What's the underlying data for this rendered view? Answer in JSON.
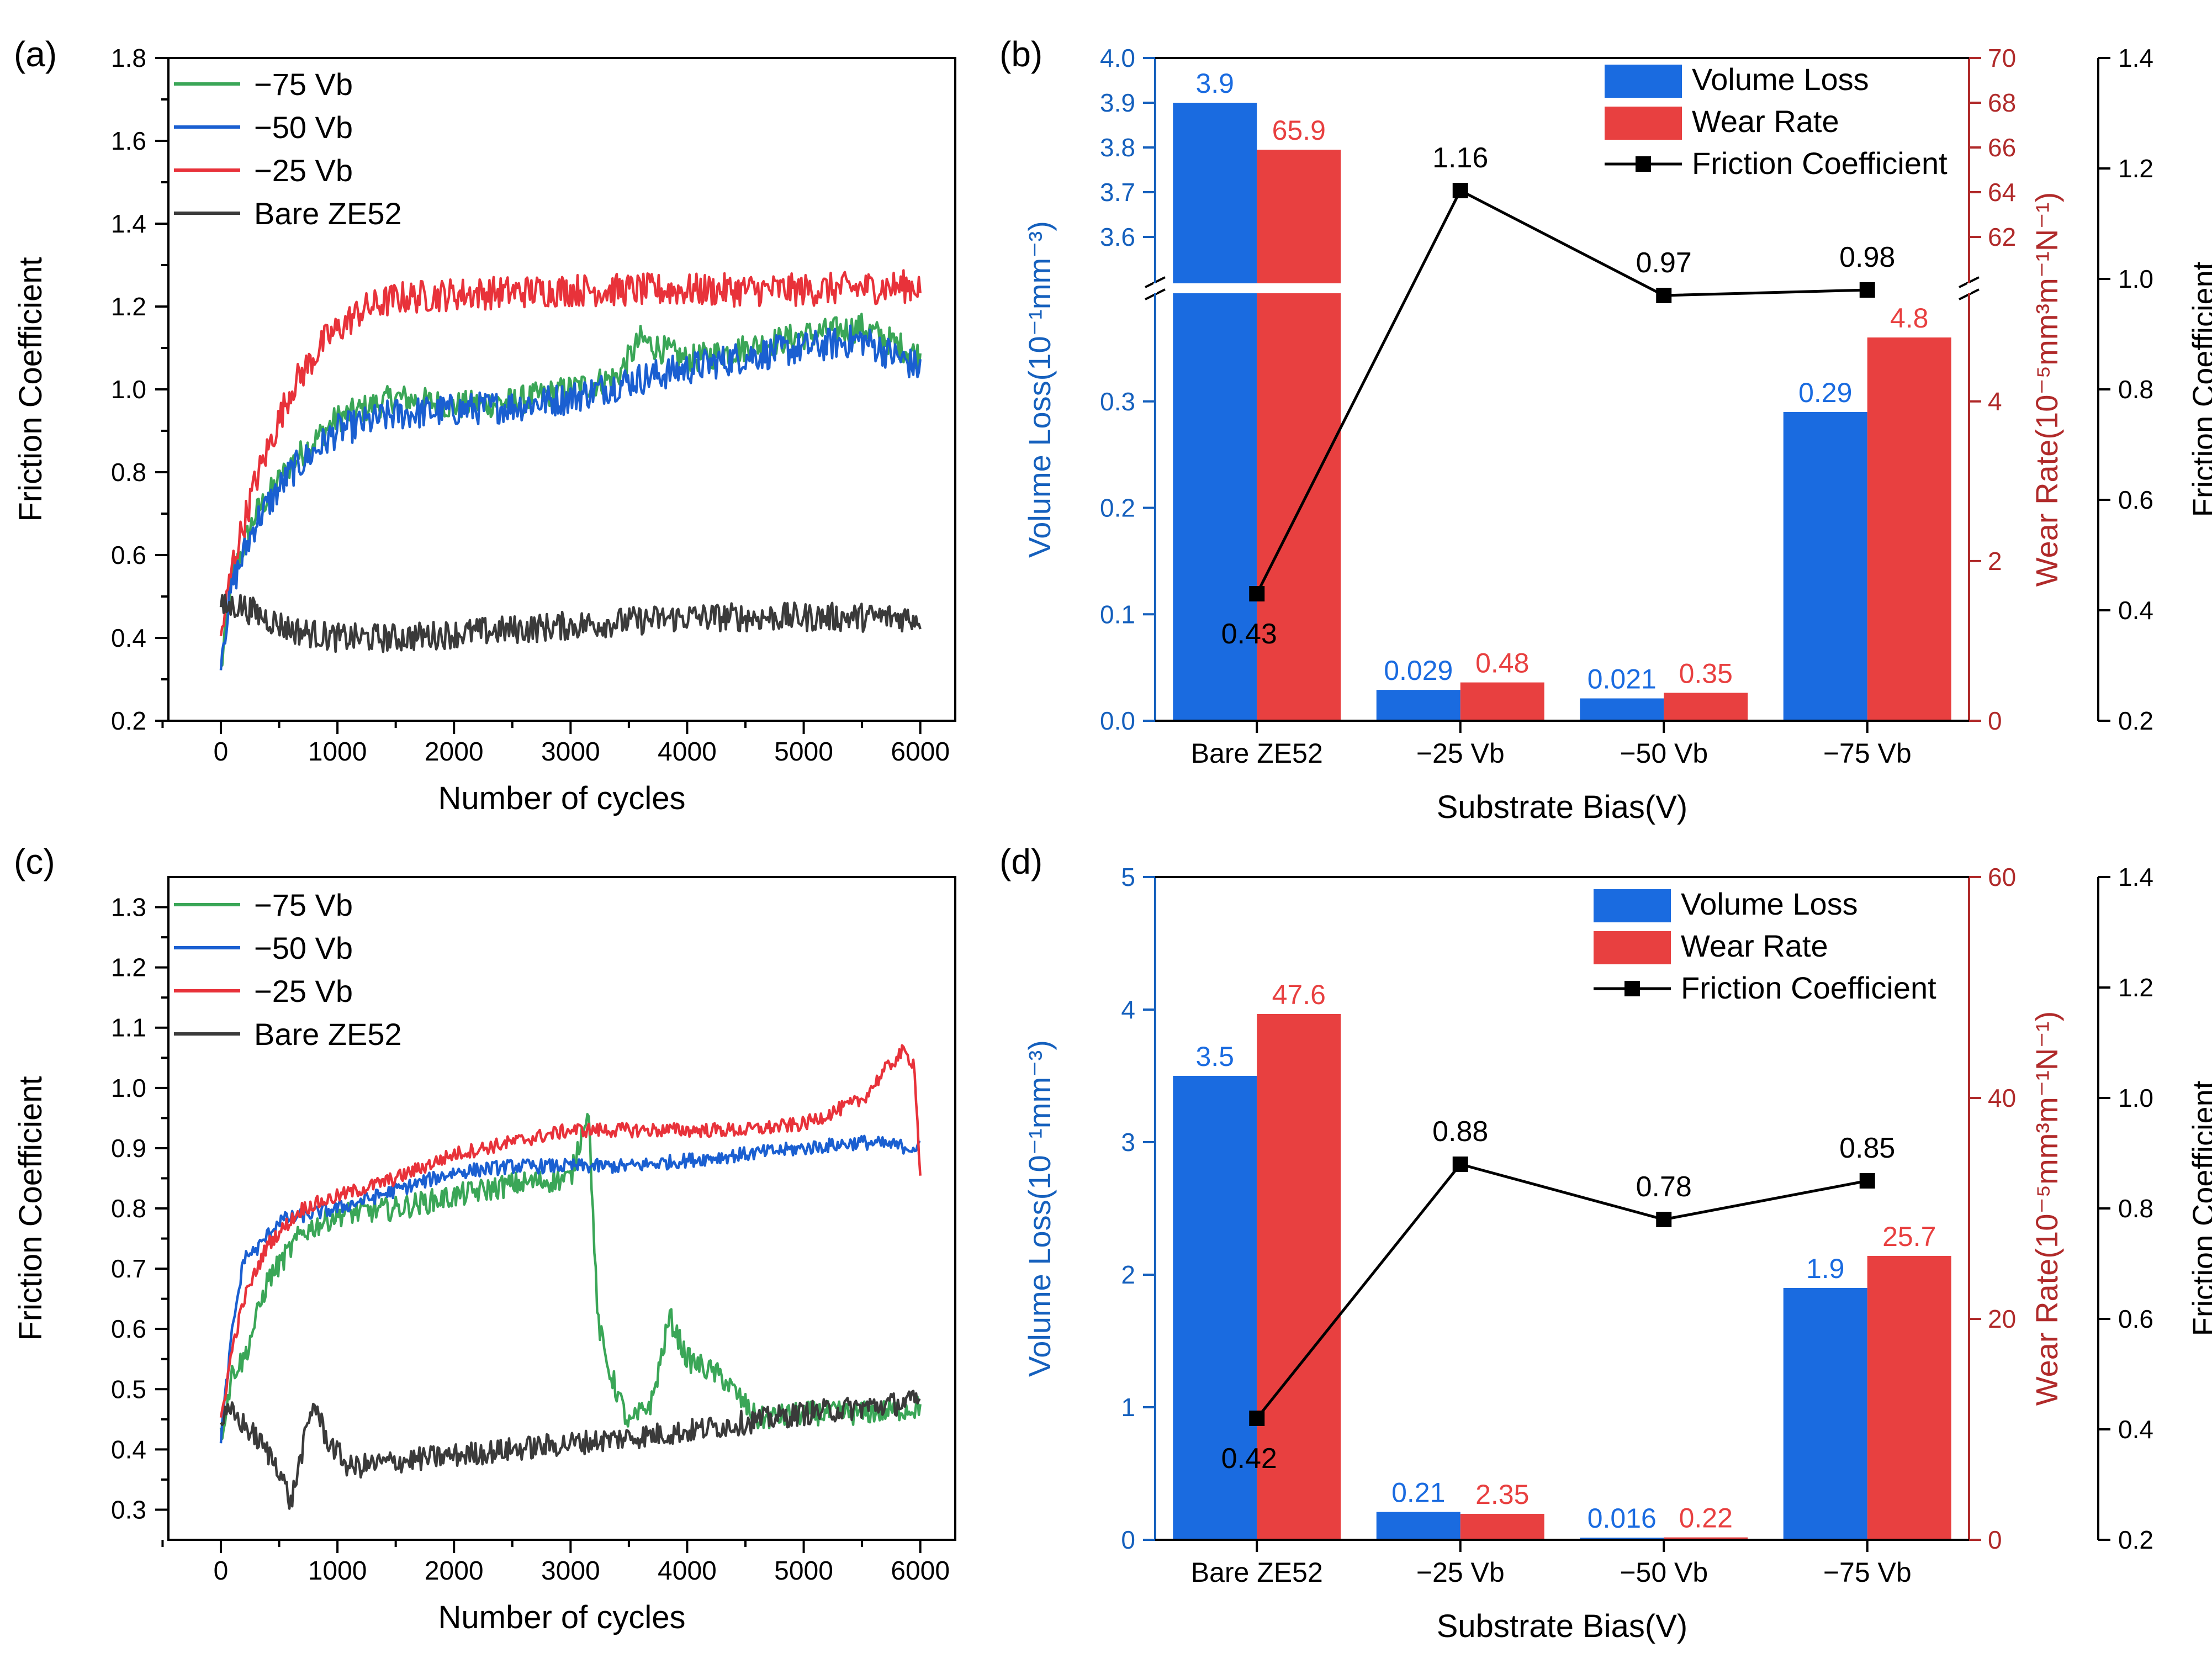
{
  "colors": {
    "series_75": "#3aa657",
    "series_50": "#1a5fd1",
    "series_25": "#e8323a",
    "series_bare": "#3a3a3a",
    "bar_volume": "#1a6be0",
    "bar_wear": "#e84040",
    "volume_axis": "#1560bd",
    "wear_axis": "#b02a2a",
    "friction_line": "#000000"
  },
  "chart_data": [
    {
      "panel_label": "(a)",
      "type": "line",
      "xlabel": "Number of cycles",
      "ylabel": "Friction Coefficient",
      "xlim": [
        -450,
        6300
      ],
      "ylim": [
        0.2,
        1.8
      ],
      "xticks": [
        0,
        1000,
        2000,
        3000,
        4000,
        5000,
        6000
      ],
      "yticks": [
        0.2,
        0.4,
        0.6,
        0.8,
        1.0,
        1.2,
        1.4,
        1.6,
        1.8
      ],
      "ytick_labels": [
        "0.2",
        "0.4",
        "0.6",
        "0.8",
        "1.0",
        "1.2",
        "1.4",
        "1.6",
        "1.8"
      ],
      "legend": [
        "−75 Vb",
        "−50 Vb",
        "−25 Vb",
        "Bare ZE52"
      ],
      "series": [
        {
          "name": "−75 Vb",
          "color_key": "series_75",
          "x": [
            0,
            100,
            300,
            600,
            1000,
            1500,
            2000,
            2500,
            3000,
            3400,
            3600,
            4000,
            4500,
            5000,
            5500,
            6000
          ],
          "y": [
            0.32,
            0.55,
            0.7,
            0.82,
            0.93,
            0.98,
            0.96,
            0.97,
            1.0,
            1.03,
            1.12,
            1.07,
            1.1,
            1.13,
            1.15,
            1.08
          ],
          "noise": 0.035
        },
        {
          "name": "−50 Vb",
          "color_key": "series_50",
          "x": [
            0,
            100,
            300,
            600,
            1000,
            1500,
            2000,
            2500,
            3000,
            3500,
            4000,
            4500,
            5000,
            5500,
            6000
          ],
          "y": [
            0.36,
            0.53,
            0.68,
            0.8,
            0.9,
            0.94,
            0.95,
            0.96,
            0.98,
            1.02,
            1.05,
            1.08,
            1.1,
            1.12,
            1.05
          ],
          "noise": 0.04
        },
        {
          "name": "−25 Vb",
          "color_key": "series_25",
          "x": [
            0,
            100,
            300,
            600,
            900,
            1200,
            1500,
            2000,
            3000,
            4000,
            5000,
            6000
          ],
          "y": [
            0.4,
            0.58,
            0.78,
            1.0,
            1.12,
            1.19,
            1.22,
            1.23,
            1.24,
            1.24,
            1.24,
            1.25
          ],
          "noise": 0.04
        },
        {
          "name": "Bare ZE52",
          "color_key": "series_bare",
          "x": [
            0,
            150,
            300,
            600,
            1000,
            1500,
            2000,
            3000,
            4000,
            5000,
            6000
          ],
          "y": [
            0.47,
            0.48,
            0.46,
            0.42,
            0.4,
            0.4,
            0.41,
            0.43,
            0.45,
            0.45,
            0.45
          ],
          "noise": 0.035
        }
      ]
    },
    {
      "panel_label": "(b)",
      "type": "bar",
      "xlabel": "Substrate Bias(V)",
      "categories": [
        "Bare ZE52",
        "−25 Vb",
        "−50 Vb",
        "−75 Vb"
      ],
      "legend": [
        "Volume Loss",
        "Wear Rate",
        "Friction Coefficient"
      ],
      "broken_axis": true,
      "volume": {
        "label": "Volume Loss(10⁻¹mm⁻³)",
        "values": [
          3.9,
          0.029,
          0.021,
          0.29
        ],
        "value_labels": [
          "3.9",
          "0.029",
          "0.021",
          "0.29"
        ],
        "lower_range": [
          0,
          0.4
        ],
        "upper_range": [
          3.5,
          4.0
        ],
        "lower_ticks": [
          0.0,
          0.1,
          0.2,
          0.3
        ],
        "lower_tick_labels": [
          "0.0",
          "0.1",
          "0.2",
          "0.3"
        ],
        "upper_ticks": [
          3.6,
          3.7,
          3.8,
          3.9,
          4.0
        ],
        "upper_tick_labels": [
          "3.6",
          "3.7",
          "3.8",
          "3.9",
          "4.0"
        ]
      },
      "wear": {
        "label": "Wear Rate(10⁻⁵mm³m⁻¹N⁻¹)",
        "values": [
          65.9,
          0.48,
          0.35,
          4.8
        ],
        "value_labels": [
          "65.9",
          "0.48",
          "0.35",
          "4.8"
        ],
        "lower_range": [
          0,
          5.333
        ],
        "upper_range": [
          60,
          70
        ],
        "lower_ticks": [
          0,
          2,
          4
        ],
        "lower_tick_labels": [
          "0",
          "2",
          "4"
        ],
        "upper_ticks": [
          62,
          64,
          66,
          68,
          70
        ],
        "upper_tick_labels": [
          "62",
          "64",
          "66",
          "68",
          "70"
        ]
      },
      "friction": {
        "label": "Friction Coefficient",
        "values": [
          0.43,
          1.16,
          0.97,
          0.98
        ],
        "value_labels": [
          "0.43",
          "1.16",
          "0.97",
          "0.98"
        ],
        "range": [
          0.2,
          1.4
        ],
        "ticks": [
          0.2,
          0.4,
          0.6,
          0.8,
          1.0,
          1.2,
          1.4
        ],
        "tick_labels": [
          "0.2",
          "0.4",
          "0.6",
          "0.8",
          "1.0",
          "1.2",
          "1.4"
        ]
      }
    },
    {
      "panel_label": "(c)",
      "type": "line",
      "xlabel": "Number of cycles",
      "ylabel": "Friction Coefficient",
      "xlim": [
        -450,
        6300
      ],
      "ylim": [
        0.25,
        1.35
      ],
      "xticks": [
        0,
        1000,
        2000,
        3000,
        4000,
        5000,
        6000
      ],
      "yticks": [
        0.3,
        0.4,
        0.5,
        0.6,
        0.7,
        0.8,
        0.9,
        1.0,
        1.1,
        1.2,
        1.3
      ],
      "ytick_labels": [
        "0.3",
        "0.4",
        "0.5",
        "0.6",
        "0.7",
        "0.8",
        "0.9",
        "1.0",
        "1.1",
        "1.2",
        "1.3"
      ],
      "legend": [
        "−75 Vb",
        "−50 Vb",
        "−25 Vb",
        "Bare ZE52"
      ],
      "series": [
        {
          "name": "−75 Vb",
          "color_key": "series_75",
          "x": [
            0,
            100,
            200,
            400,
            700,
            1000,
            1500,
            2000,
            2500,
            3000,
            3150,
            3180,
            3230,
            3300,
            3500,
            3700,
            3850,
            4000,
            4300,
            4600,
            5000,
            5500,
            6000
          ],
          "y": [
            0.42,
            0.53,
            0.55,
            0.68,
            0.76,
            0.79,
            0.8,
            0.82,
            0.84,
            0.85,
            0.97,
            0.85,
            0.62,
            0.55,
            0.44,
            0.48,
            0.62,
            0.55,
            0.52,
            0.45,
            0.46,
            0.46,
            0.47
          ],
          "noise": 0.02
        },
        {
          "name": "−50 Vb",
          "color_key": "series_50",
          "x": [
            0,
            100,
            200,
            300,
            500,
            1000,
            1500,
            2000,
            2500,
            3000,
            3500,
            4000,
            4500,
            5000,
            5500,
            6000
          ],
          "y": [
            0.42,
            0.6,
            0.72,
            0.73,
            0.78,
            0.8,
            0.83,
            0.86,
            0.87,
            0.87,
            0.87,
            0.88,
            0.89,
            0.9,
            0.91,
            0.9
          ],
          "noise": 0.012
        },
        {
          "name": "−25 Vb",
          "color_key": "series_25",
          "x": [
            0,
            100,
            200,
            400,
            700,
            1000,
            1500,
            2000,
            2500,
            3000,
            3500,
            4000,
            4500,
            5000,
            5500,
            5700,
            5850,
            5950,
            6000
          ],
          "y": [
            0.45,
            0.57,
            0.65,
            0.74,
            0.8,
            0.82,
            0.85,
            0.89,
            0.91,
            0.93,
            0.93,
            0.93,
            0.93,
            0.94,
            0.98,
            1.03,
            1.06,
            1.04,
            0.85
          ],
          "noise": 0.012
        },
        {
          "name": "Bare ZE52",
          "color_key": "series_bare",
          "x": [
            0,
            100,
            300,
            500,
            600,
            700,
            800,
            900,
            1100,
            1500,
            2000,
            2500,
            3000,
            3500,
            4000,
            5000,
            6000
          ],
          "y": [
            0.45,
            0.46,
            0.42,
            0.37,
            0.31,
            0.4,
            0.48,
            0.42,
            0.37,
            0.38,
            0.39,
            0.4,
            0.41,
            0.42,
            0.43,
            0.46,
            0.48
          ],
          "noise": 0.02
        }
      ]
    },
    {
      "panel_label": "(d)",
      "type": "bar",
      "xlabel": "Substrate Bias(V)",
      "categories": [
        "Bare ZE52",
        "−25 Vb",
        "−50 Vb",
        "−75 Vb"
      ],
      "legend": [
        "Volume Loss",
        "Wear Rate",
        "Friction Coefficient"
      ],
      "broken_axis": false,
      "volume": {
        "label": "Volume Loss(10⁻¹mm⁻³)",
        "values": [
          3.5,
          0.21,
          0.016,
          1.9
        ],
        "value_labels": [
          "3.5",
          "0.21",
          "0.016",
          "1.9"
        ],
        "range": [
          0,
          5
        ],
        "ticks": [
          0,
          1,
          2,
          3,
          4,
          5
        ],
        "tick_labels": [
          "0",
          "1",
          "2",
          "3",
          "4",
          "5"
        ]
      },
      "wear": {
        "label": "Wear Rate(10⁻⁵mm³m⁻¹N⁻¹)",
        "values": [
          47.6,
          2.35,
          0.22,
          25.7
        ],
        "value_labels": [
          "47.6",
          "2.35",
          "0.22",
          "25.7"
        ],
        "range": [
          0,
          60
        ],
        "ticks": [
          0,
          20,
          40,
          60
        ],
        "tick_labels": [
          "0",
          "20",
          "40",
          "60"
        ]
      },
      "friction": {
        "label": "Friction Coefficient",
        "values": [
          0.42,
          0.88,
          0.78,
          0.85
        ],
        "value_labels": [
          "0.42",
          "0.88",
          "0.78",
          "0.85"
        ],
        "range": [
          0.2,
          1.4
        ],
        "ticks": [
          0.2,
          0.4,
          0.6,
          0.8,
          1.0,
          1.2,
          1.4
        ],
        "tick_labels": [
          "0.2",
          "0.4",
          "0.6",
          "0.8",
          "1.0",
          "1.2",
          "1.4"
        ]
      }
    }
  ]
}
